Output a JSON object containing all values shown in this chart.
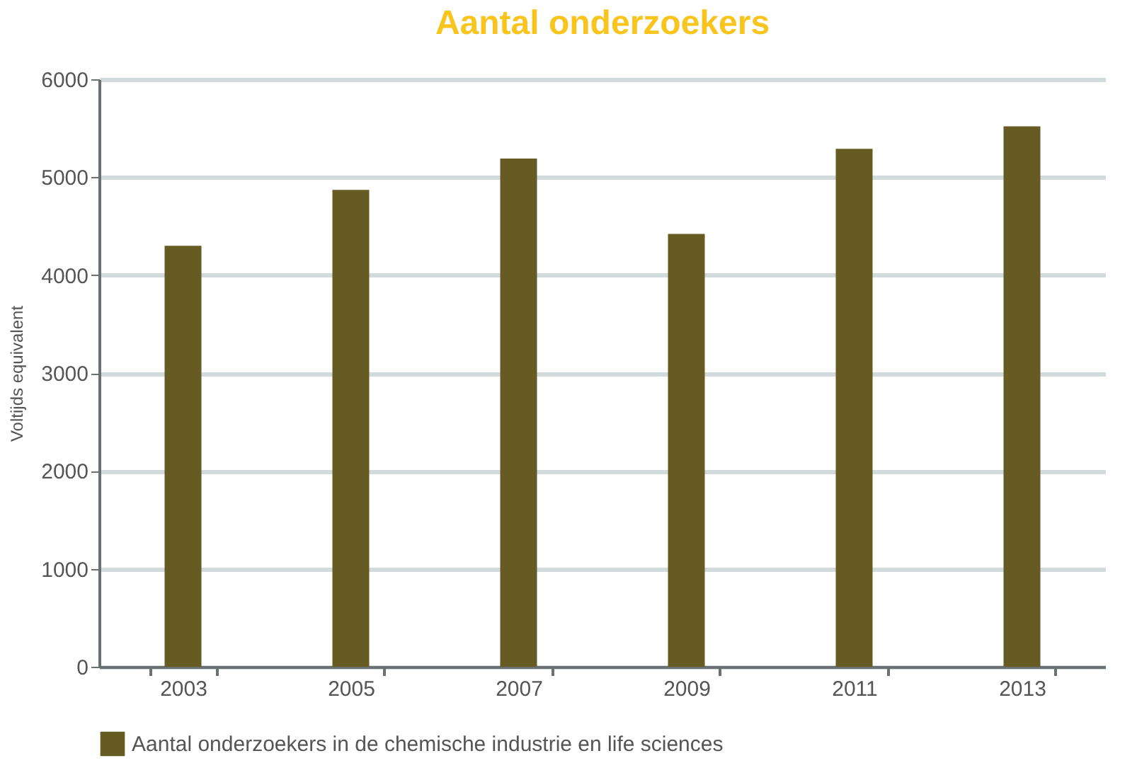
{
  "chart_data": {
    "type": "bar",
    "title": "Aantal onderzoekers",
    "ylabel": "Voltijds equivalent",
    "categories": [
      "2003",
      "2005",
      "2007",
      "2009",
      "2011",
      "2013"
    ],
    "series": [
      {
        "name": "Aantal onderzoekers in de chemische industrie en life sciences",
        "color": "#665b22",
        "values": [
          4300,
          4870,
          5190,
          4420,
          5290,
          5520
        ]
      }
    ],
    "ylim": [
      0,
      6000
    ],
    "yticks": [
      0,
      1000,
      2000,
      3000,
      4000,
      5000,
      6000
    ],
    "grid": "y",
    "legend": "bottom left"
  }
}
